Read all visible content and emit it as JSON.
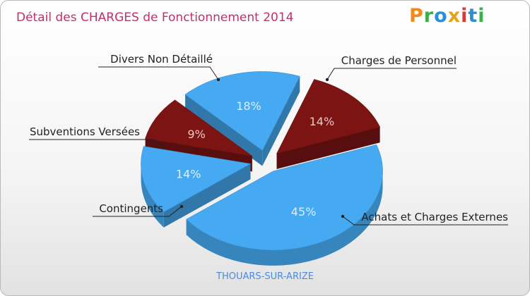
{
  "header": {
    "title": "Détail des CHARGES de Fonctionnement 2014",
    "logo": {
      "text": "Proxiti",
      "letters": [
        {
          "char": "P",
          "color": "#f08a1c"
        },
        {
          "char": "r",
          "color": "#3cae4a"
        },
        {
          "char": "o",
          "color": "#2b8fd6"
        },
        {
          "char": "x",
          "color": "#e8a21a"
        },
        {
          "char": "i",
          "color": "#d63b3b"
        },
        {
          "char": "t",
          "color": "#2b8fd6"
        },
        {
          "char": "i",
          "color": "#3cae4a"
        }
      ]
    }
  },
  "footer": {
    "commune": "THOUARS-SUR-ARIZE"
  },
  "chart_data": {
    "type": "pie",
    "style": "3d-exploded",
    "title": "Détail des CHARGES de Fonctionnement 2014",
    "slices": [
      {
        "label": "Charges de Personnel",
        "value": 14,
        "percent_label": "14%",
        "color": "#7d1414"
      },
      {
        "label": "Achats et Charges Externes",
        "value": 45,
        "percent_label": "45%",
        "color": "#46aaf2"
      },
      {
        "label": "Contingents",
        "value": 14,
        "percent_label": "14%",
        "color": "#46aaf2"
      },
      {
        "label": "Subventions Versées",
        "value": 9,
        "percent_label": "9%",
        "color": "#7d1414"
      },
      {
        "label": "Divers Non Détaillé",
        "value": 18,
        "percent_label": "18%",
        "color": "#46aaf2"
      }
    ]
  }
}
